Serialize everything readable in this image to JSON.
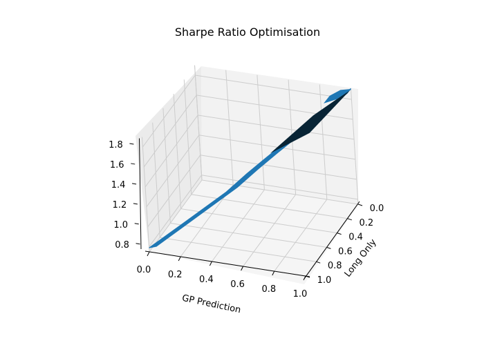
{
  "chart_data": {
    "type": "surface",
    "title": "Sharpe Ratio Optimisation",
    "xlabel": "GP Prediction",
    "ylabel": "Long Only",
    "zlabel": "",
    "x_ticks": [
      "0.0",
      "0.2",
      "0.4",
      "0.6",
      "0.8",
      "1.0"
    ],
    "y_ticks": [
      "0.0",
      "0.2",
      "0.4",
      "0.6",
      "0.8",
      "1.0"
    ],
    "z_ticks": [
      "0.8",
      "1.0",
      "1.2",
      "1.4",
      "1.6",
      "1.8"
    ],
    "xlim": [
      0,
      1
    ],
    "ylim": [
      0,
      1
    ],
    "zlim": [
      0.75,
      1.9
    ],
    "grid": true,
    "surface_color": "#1f77b4",
    "surface_ridge": [
      {
        "x": 0.0,
        "y": 1.0,
        "z": 0.8
      },
      {
        "x": 0.2,
        "y": 0.8,
        "z": 1.0
      },
      {
        "x": 0.4,
        "y": 0.6,
        "z": 1.2
      },
      {
        "x": 0.5,
        "y": 0.5,
        "z": 1.33
      },
      {
        "x": 0.6,
        "y": 0.4,
        "z": 1.45
      },
      {
        "x": 0.8,
        "y": 0.2,
        "z": 1.68
      },
      {
        "x": 1.0,
        "y": 0.0,
        "z": 1.9
      }
    ]
  },
  "colors": {
    "pane_back": "#f2f2f2",
    "pane_side": "#ebebeb",
    "pane_floor": "#f5f5f5",
    "grid": "#cccccc",
    "axis": "#000000",
    "surface_dark": "#082435"
  }
}
